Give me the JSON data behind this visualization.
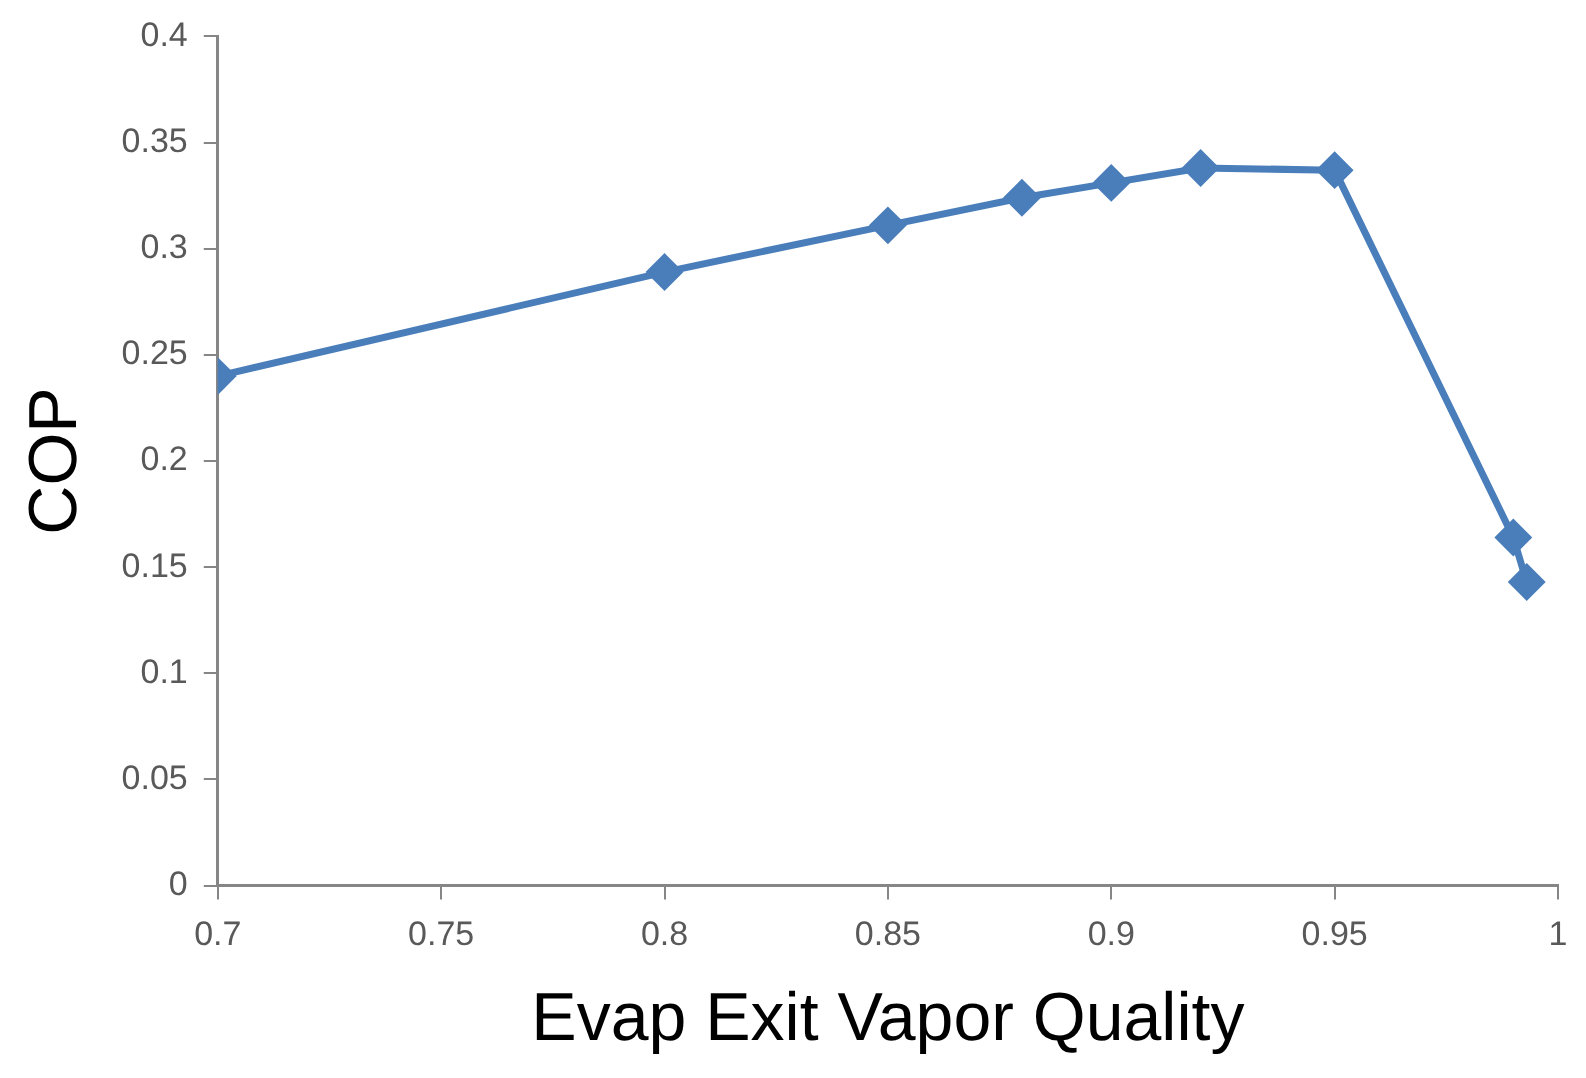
{
  "chart_data": {
    "type": "line",
    "xlabel": "Evap Exit Vapor Quality",
    "ylabel": "COP",
    "x": [
      0.7,
      0.8,
      0.85,
      0.88,
      0.9,
      0.92,
      0.95,
      0.99,
      0.993
    ],
    "series": [
      {
        "color": "#4a7ebb",
        "values": [
          0.24,
          0.289,
          0.311,
          0.324,
          0.331,
          0.338,
          0.337,
          0.164,
          0.143
        ]
      }
    ],
    "xlim": [
      0.7,
      1
    ],
    "xticks": [
      0.7,
      0.75,
      0.8,
      0.85,
      0.9,
      0.95,
      1
    ],
    "ylim": [
      0,
      0.4
    ],
    "yticks": [
      0,
      0.05,
      0.1,
      0.15,
      0.2,
      0.25,
      0.3,
      0.35,
      0.4
    ],
    "grid": false,
    "legend": false,
    "marker": "diamond",
    "line_style": "solid"
  }
}
